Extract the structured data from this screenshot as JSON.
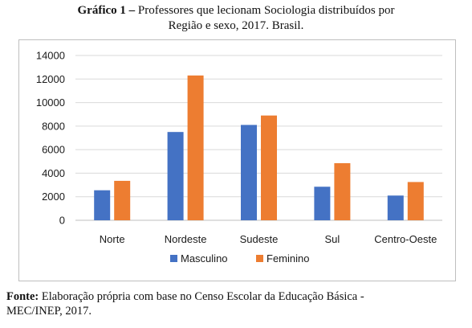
{
  "title": {
    "label": "Gráfico 1 –",
    "line1": "Professores que lecionam Sociologia distribuídos por",
    "line2": "Região e sexo, 2017. Brasil."
  },
  "footer": {
    "label": "Fonte:",
    "line1": "Elaboração própria com base no Censo Escolar da Educação Básica -",
    "line2": "MEC/INEP, 2017."
  },
  "chart_data": {
    "type": "bar",
    "categories": [
      "Norte",
      "Nordeste",
      "Sudeste",
      "Sul",
      "Centro-Oeste"
    ],
    "series": [
      {
        "name": "Masculino",
        "color": "#4472C4",
        "values": [
          2550,
          7500,
          8100,
          2850,
          2100
        ]
      },
      {
        "name": "Feminino",
        "color": "#ED7D31",
        "values": [
          3350,
          12300,
          8900,
          4850,
          3250
        ]
      }
    ],
    "yticks": [
      "0",
      "2000",
      "4000",
      "6000",
      "8000",
      "10000",
      "12000",
      "14000"
    ],
    "ylim": [
      0,
      14000
    ],
    "grid": true,
    "legend": "bottom"
  }
}
